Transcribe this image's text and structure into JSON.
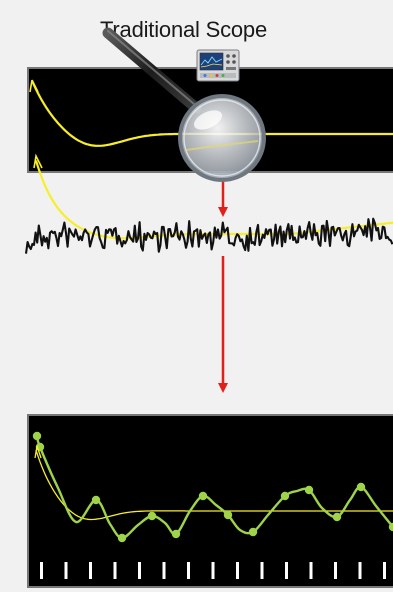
{
  "title": "Traditional Scope",
  "icons": {
    "instrument": "oscilloscope-icon",
    "lens": "magnifying-glass-icon",
    "flow": "red-down-arrow-icon"
  },
  "colors": {
    "background": "#f1f1f1",
    "screen": "#000000",
    "decay_curve": "#f7ee2b",
    "sampled_curve": "#9ed34a",
    "noise": "#111111",
    "arrow": "#e0201b",
    "tick": "#ffffff"
  }
}
